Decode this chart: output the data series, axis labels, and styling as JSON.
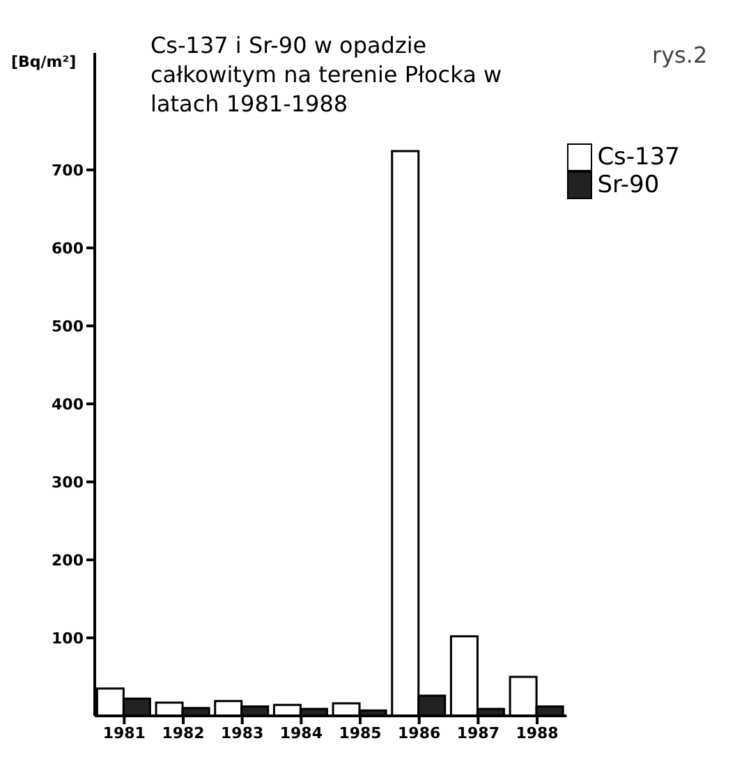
{
  "chart_data": {
    "type": "bar",
    "title": "Cs-137 i Sr-90 w opadzie całkowitym na terenie Płocka w latach 1981-1988",
    "ylabel": "[Bq/m²]",
    "annotations": [
      "rys.2"
    ],
    "categories": [
      "1981",
      "1982",
      "1983",
      "1984",
      "1985",
      "1986",
      "1987",
      "1988"
    ],
    "series": [
      {
        "name": "Cs-137",
        "color": "#ffffff",
        "values": [
          35,
          17,
          19,
          14,
          16,
          724,
          102,
          50
        ]
      },
      {
        "name": "Sr-90",
        "color": "#222222",
        "values": [
          22,
          10,
          12,
          9,
          7,
          26,
          9,
          12
        ]
      }
    ],
    "ylim": [
      0,
      850
    ],
    "yticks": [
      100,
      200,
      300,
      400,
      500,
      600,
      700
    ],
    "legend": "top right"
  }
}
